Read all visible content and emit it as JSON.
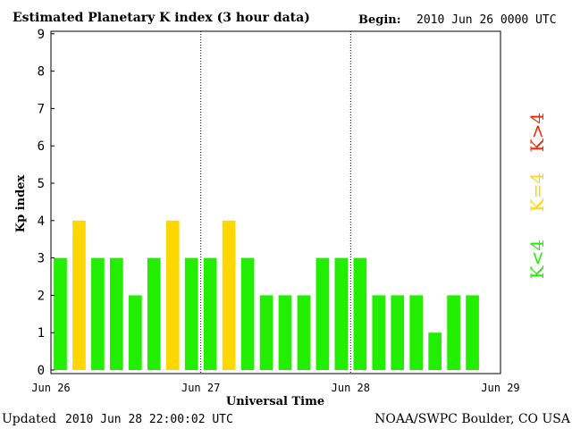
{
  "header": {
    "title": "Estimated Planetary K index (3 hour data)",
    "begin_label": "Begin:",
    "begin_value": "2010 Jun 26 0000 UTC"
  },
  "footer": {
    "updated_label": "Updated",
    "updated_value": "2010 Jun 28 22:00:02 UTC",
    "source": "NOAA/SWPC Boulder, CO USA"
  },
  "legend": [
    {
      "text": "K<4",
      "color": "#22ee00"
    },
    {
      "text": "K=4",
      "color": "#ffd700"
    },
    {
      "text": "K>4",
      "color": "#ff2200"
    }
  ],
  "colors": {
    "below4": "#22ee00",
    "equal4": "#ffd700",
    "above4": "#ff2200"
  },
  "chart_data": {
    "type": "bar",
    "title": "Estimated Planetary K index (3 hour data)",
    "xlabel": "Universal Time",
    "ylabel": "Kp index",
    "ylim": [
      0,
      9
    ],
    "yticks": [
      "0",
      "1",
      "2",
      "3",
      "4",
      "5",
      "6",
      "7",
      "8",
      "9"
    ],
    "xtick_labels": [
      "Jun 26",
      "Jun 27",
      "Jun 28",
      "Jun 29"
    ],
    "xlim_slots": 24,
    "day_dividers_at_slot": [
      8,
      16
    ],
    "values": [
      3,
      4,
      3,
      3,
      2,
      3,
      4,
      3,
      3,
      4,
      3,
      2,
      2,
      2,
      3,
      3,
      3,
      2,
      2,
      2,
      1,
      2,
      2
    ]
  }
}
